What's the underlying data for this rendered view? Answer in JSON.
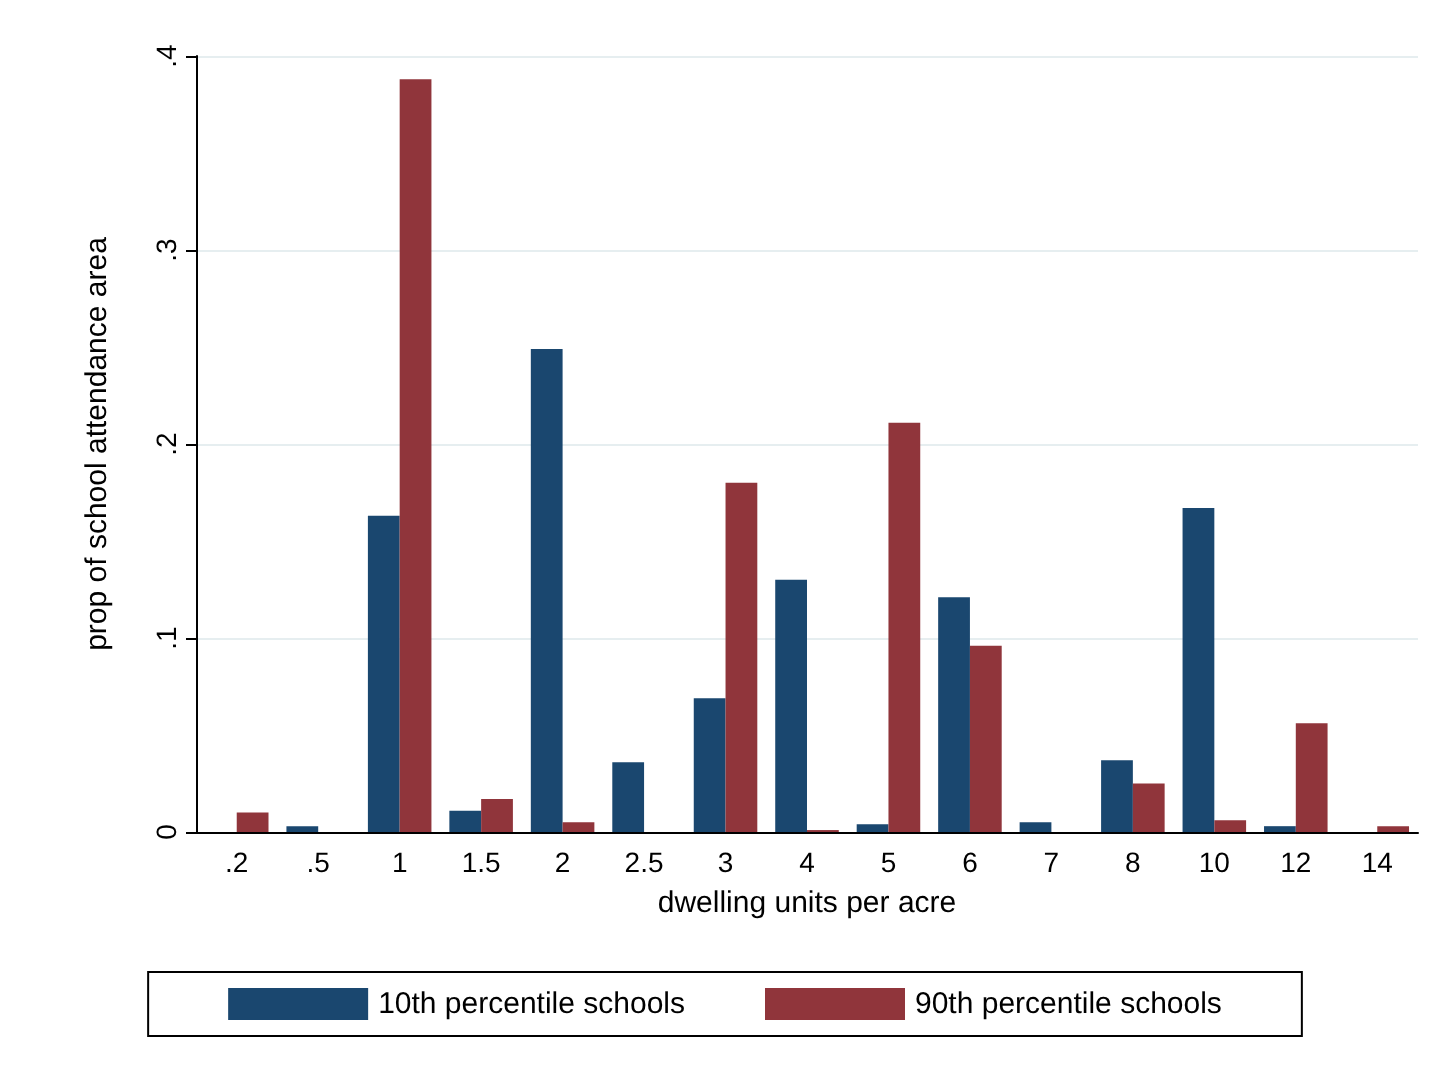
{
  "chart_data": {
    "type": "bar",
    "xlabel": "dwelling units per acre",
    "ylabel": "prop of school attendance area",
    "categories": [
      ".2",
      ".5",
      "1",
      "1.5",
      "2",
      "2.5",
      "3",
      "4",
      "5",
      "6",
      "7",
      "8",
      "10",
      "12",
      "14"
    ],
    "series": [
      {
        "name": "10th percentile schools",
        "color": "#1a476f",
        "values": [
          0,
          0.003,
          0.163,
          0.011,
          0.249,
          0.036,
          0.069,
          0.13,
          0.004,
          0.121,
          0.005,
          0.037,
          0.167,
          0.003,
          0
        ]
      },
      {
        "name": "90th percentile schools",
        "color": "#90353b",
        "values": [
          0.01,
          0,
          0.388,
          0.017,
          0.005,
          0,
          0.18,
          0.001,
          0.211,
          0.096,
          0,
          0.025,
          0.006,
          0.056,
          0.003
        ]
      }
    ],
    "ylim": [
      0,
      0.4
    ],
    "yticks": [
      0,
      {
        "value": 0.1,
        "label": ".1"
      },
      {
        "value": 0.2,
        "label": ".2"
      },
      {
        "value": 0.3,
        "label": ".3"
      },
      {
        "value": 0.4,
        "label": ".4"
      }
    ],
    "grid": "y",
    "legend": "bottom"
  }
}
